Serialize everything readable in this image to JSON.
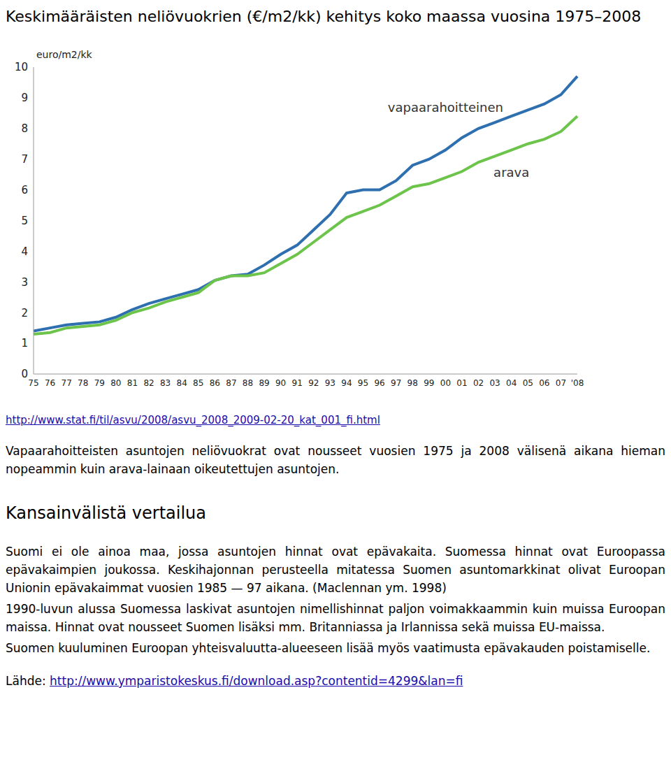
{
  "title": "Keskimääräisten neliövuokrien (€/m2/kk) kehitys koko maassa vuosina 1975–2008",
  "chart_data": {
    "type": "line",
    "y_label": "euro/m2/kk",
    "categories": [
      "75",
      "76",
      "77",
      "78",
      "79",
      "80",
      "81",
      "82",
      "83",
      "84",
      "85",
      "86",
      "87",
      "88",
      "89",
      "90",
      "91",
      "92",
      "93",
      "94",
      "95",
      "96",
      "97",
      "98",
      "99",
      "00",
      "01",
      "02",
      "03",
      "04",
      "05",
      "06",
      "07",
      "'08"
    ],
    "series": [
      {
        "name": "vapaarahoitteinen",
        "color": "#2e6fb0",
        "values": [
          1.4,
          1.5,
          1.6,
          1.65,
          1.7,
          1.85,
          2.1,
          2.3,
          2.45,
          2.6,
          2.75,
          3.05,
          3.2,
          3.25,
          3.55,
          3.9,
          4.2,
          4.7,
          5.2,
          5.9,
          6.0,
          6.0,
          6.3,
          6.8,
          7.0,
          7.3,
          7.7,
          8.0,
          8.2,
          8.4,
          8.6,
          8.8,
          9.1,
          9.7
        ]
      },
      {
        "name": "arava",
        "color": "#6dc44a",
        "values": [
          1.3,
          1.35,
          1.5,
          1.55,
          1.6,
          1.75,
          2.0,
          2.15,
          2.35,
          2.5,
          2.65,
          3.05,
          3.2,
          3.2,
          3.3,
          3.6,
          3.9,
          4.3,
          4.7,
          5.1,
          5.3,
          5.5,
          5.8,
          6.1,
          6.2,
          6.4,
          6.6,
          6.9,
          7.1,
          7.3,
          7.5,
          7.65,
          7.9,
          8.4
        ]
      }
    ],
    "ylim": [
      0,
      10
    ],
    "yticks": [
      0,
      1,
      2,
      3,
      4,
      5,
      6,
      7,
      8,
      9,
      10
    ],
    "grid": false
  },
  "chart_source": "http://www.stat.fi/til/asvu/2008/asvu_2008_2009-02-20_kat_001_fi.html",
  "intro": "Vapaarahoitteisten asuntojen neliövuokrat ovat nousseet vuosien 1975 ja 2008 välisenä aikana hieman nopeammin kuin arava-lainaan oikeutettujen asuntojen.",
  "section": {
    "heading": "Kansainvälistä vertailua",
    "paragraphs": [
      "Suomi ei ole ainoa maa, jossa asuntojen hinnat ovat epävakaita. Suomessa hinnat ovat Euroopassa epävakaimpien joukossa. Keskihajonnan perusteella mitatessa Suomen asuntomarkkinat olivat Euroopan Unionin epävakaimmat vuosien 1985 — 97 aikana. (Maclennan ym. 1998)",
      "1990-luvun alussa Suomessa laskivat asuntojen nimellishinnat paljon voimakkaammin kuin muissa Euroopan maissa. Hinnat ovat nousseet Suomen lisäksi mm. Britanniassa ja Irlannissa sekä muissa EU-maissa.",
      "Suomen kuuluminen Euroopan yhteisvaluutta-alueeseen lisää myös vaatimusta epävakauden poistamiselle."
    ]
  },
  "source": {
    "label": "Lähde:",
    "url": "http://www.ymparistokeskus.fi/download.asp?contentid=4299&lan=fi"
  }
}
